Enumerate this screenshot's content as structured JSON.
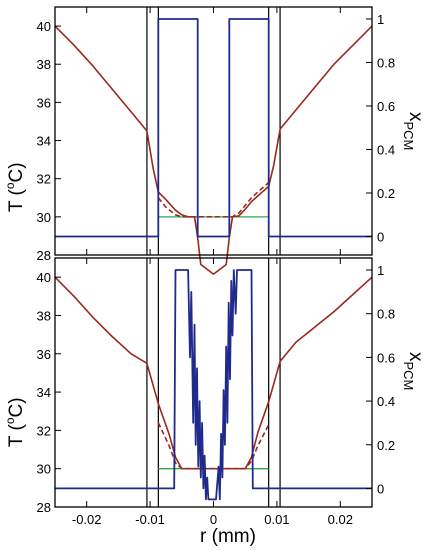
{
  "colors": {
    "temperature": "#9a2a1c",
    "pcm_fraction": "#1f2a8c",
    "melting_line": "#2ea84a",
    "boundary_lines": "#000000",
    "frame": "#000000"
  },
  "axes_text": {
    "ylabel_left": "T (",
    "ylabel_left_sup": "o",
    "ylabel_left_unit": "C)",
    "ylabel_right_main": "x",
    "ylabel_right_sub": "PCM",
    "xlabel": "r  (mm)"
  },
  "chart_data": [
    {
      "type": "line",
      "panel": "top",
      "xlim": [
        -0.025,
        0.025
      ],
      "ylim_left": [
        28,
        41
      ],
      "ylim_right": [
        -0.085,
        1.055
      ],
      "x_ticks": [
        -0.02,
        -0.01,
        0,
        0.01,
        0.02
      ],
      "x_tick_labels": [
        "",
        "",
        "",
        "",
        ""
      ],
      "y_left_ticks": [
        28,
        30,
        32,
        34,
        36,
        38,
        40
      ],
      "y_left_tick_labels": [
        "28",
        "30",
        "32",
        "34",
        "36",
        "38",
        "40"
      ],
      "y_right_ticks": [
        0,
        0.2,
        0.4,
        0.6,
        0.8,
        1
      ],
      "y_right_tick_labels": [
        "0",
        "0.2",
        "0.4",
        "0.6",
        "0.8",
        "1"
      ],
      "vertical_lines": [
        -0.0105,
        -0.0087,
        0.0087,
        0.0105
      ],
      "melting_temperature": {
        "y": 30,
        "x_range": [
          -0.0087,
          0.0087
        ]
      },
      "series": [
        {
          "axis": "left",
          "style": "solid",
          "x": [
            -0.025,
            -0.022,
            -0.019,
            -0.016,
            -0.013,
            -0.0105,
            -0.0095,
            -0.0087,
            -0.0075,
            -0.006,
            -0.005,
            -0.004,
            -0.003,
            -0.0025,
            -0.002,
            0,
            0.002,
            0.0025,
            0.003,
            0.004,
            0.005,
            0.006,
            0.007,
            0.0087,
            0.0095,
            0.0105,
            0.013,
            0.016,
            0.019,
            0.022,
            0.025
          ],
          "y": [
            40.0,
            39.0,
            37.9,
            36.7,
            35.5,
            34.5,
            32.5,
            31.3,
            30.9,
            30.35,
            30.1,
            30.0,
            30.0,
            28.9,
            27.5,
            27.0,
            27.5,
            28.9,
            30.0,
            30.05,
            30.4,
            30.8,
            31.1,
            31.6,
            32.7,
            34.6,
            35.6,
            36.8,
            38.0,
            39.0,
            40.0
          ]
        },
        {
          "axis": "left",
          "style": "dashed",
          "x": [
            -0.0087,
            -0.0075,
            -0.006,
            -0.005,
            -0.004,
            -0.003,
            0.003,
            0.004,
            0.005,
            0.006,
            0.007,
            0.0087
          ],
          "y": [
            31.0,
            30.5,
            30.1,
            30.0,
            30.0,
            30.0,
            30.0,
            30.2,
            30.6,
            31.0,
            31.3,
            31.8
          ]
        },
        {
          "axis": "right",
          "style": "solid",
          "x": [
            -0.025,
            -0.0087,
            -0.0087,
            -0.0025,
            -0.0025,
            0.0025,
            0.0025,
            0.0087,
            0.0087,
            0.025
          ],
          "y": [
            0,
            0,
            1,
            1,
            0,
            0,
            1,
            1,
            0,
            0
          ]
        }
      ]
    },
    {
      "type": "line",
      "panel": "bottom",
      "xlim": [
        -0.025,
        0.025
      ],
      "ylim_left": [
        28,
        41
      ],
      "ylim_right": [
        -0.085,
        1.055
      ],
      "x_ticks": [
        -0.02,
        -0.01,
        0,
        0.01,
        0.02
      ],
      "x_tick_labels": [
        "-0.02",
        "-0.01",
        "0",
        "0.01",
        "0.02"
      ],
      "y_left_ticks": [
        28,
        30,
        32,
        34,
        36,
        38,
        40
      ],
      "y_left_tick_labels": [
        "28",
        "30",
        "32",
        "34",
        "36",
        "38",
        "40"
      ],
      "y_right_ticks": [
        0,
        0.2,
        0.4,
        0.6,
        0.8,
        1
      ],
      "y_right_tick_labels": [
        "0",
        "0.2",
        "0.4",
        "0.6",
        "0.8",
        "1"
      ],
      "vertical_lines": [
        -0.0105,
        -0.0087,
        0.0087,
        0.0105
      ],
      "melting_temperature": {
        "y": 30,
        "x_range": [
          -0.0087,
          0.0087
        ]
      },
      "series": [
        {
          "axis": "left",
          "style": "solid",
          "x": [
            -0.025,
            -0.022,
            -0.019,
            -0.016,
            -0.013,
            -0.0105,
            -0.0087,
            -0.007,
            -0.006,
            -0.005,
            -0.004,
            -0.003,
            -0.002,
            -0.001,
            0,
            0.001,
            0.002,
            0.003,
            0.004,
            0.005,
            0.006,
            0.007,
            0.0087,
            0.0105,
            0.013,
            0.016,
            0.019,
            0.022,
            0.025
          ],
          "y": [
            40.0,
            39.0,
            37.9,
            36.9,
            36.0,
            35.5,
            33.4,
            31.8,
            30.6,
            30.0,
            30.0,
            30.0,
            30.0,
            30.0,
            30.0,
            30.0,
            30.0,
            30.0,
            30.0,
            30.0,
            30.6,
            31.9,
            33.5,
            35.6,
            36.6,
            37.4,
            38.2,
            39.1,
            40.0
          ]
        },
        {
          "axis": "left",
          "style": "dashed",
          "x": [
            -0.0087,
            -0.007,
            -0.006,
            -0.005,
            -0.004,
            0.004,
            0.005,
            0.006,
            0.007,
            0.0087
          ],
          "y": [
            32.4,
            31.2,
            30.3,
            30.0,
            30.0,
            30.0,
            30.0,
            30.4,
            31.2,
            32.3
          ]
        },
        {
          "axis": "right",
          "style": "solid",
          "x": [
            -0.025,
            -0.0087,
            -0.0087,
            -0.0062,
            -0.006,
            -0.004,
            -0.0037,
            -0.0035,
            -0.0032,
            -0.003,
            -0.0028,
            -0.0026,
            -0.0024,
            -0.0022,
            -0.002,
            -0.0018,
            -0.0016,
            -0.0014,
            -0.0012,
            -0.001,
            -0.0008,
            -0.0004,
            0,
            0.0004,
            0.0008,
            0.001,
            0.0012,
            0.0014,
            0.0016,
            0.0018,
            0.002,
            0.0022,
            0.0024,
            0.0026,
            0.0028,
            0.003,
            0.0032,
            0.0035,
            0.0037,
            0.004,
            0.006,
            0.0062,
            0.0087,
            0.0087,
            0.025
          ],
          "y": [
            0,
            0,
            0,
            0,
            1,
            1,
            0.6,
            0.9,
            0.3,
            0.75,
            0.2,
            0.55,
            0.1,
            0.4,
            0.05,
            0.3,
            0.0,
            0.15,
            -0.05,
            0.05,
            -0.05,
            -0.05,
            -0.05,
            -0.05,
            0.1,
            -0.05,
            0.25,
            0.05,
            0.45,
            0.2,
            0.65,
            0.3,
            0.85,
            0.5,
            0.95,
            0.7,
            1.0,
            0.8,
            1,
            1,
            1,
            0,
            0,
            0,
            0
          ]
        }
      ]
    }
  ]
}
